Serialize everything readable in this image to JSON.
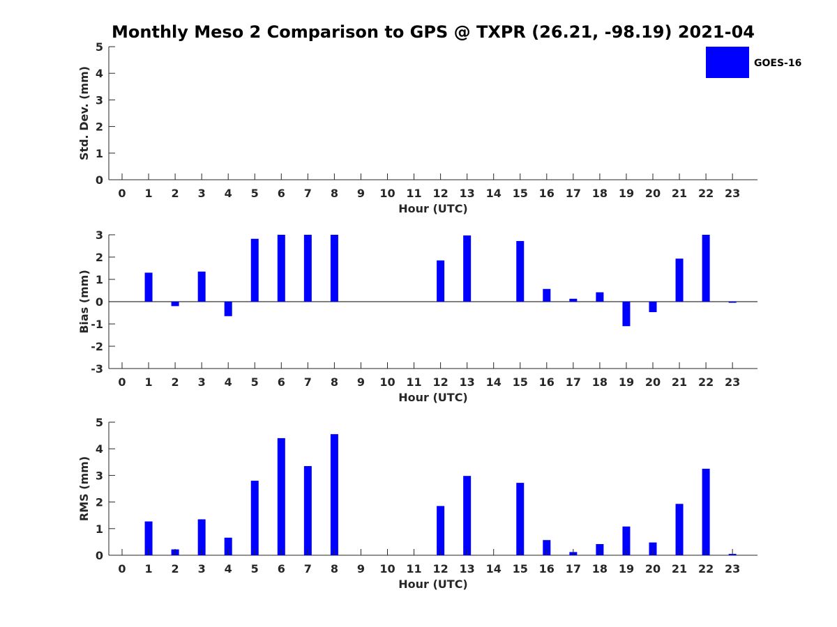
{
  "chart_data": {
    "title": "Monthly Meso 2 Comparison to GPS @ TXPR (26.21, -98.19) 2021-04",
    "legend": {
      "label": "GOES-16",
      "color": "#0000ff",
      "placement": "top-right"
    },
    "bar_color": "#0000ff",
    "subplots": [
      {
        "type": "bar",
        "name": "std-dev",
        "ylabel": "Std. Dev. (mm)",
        "xlabel": "Hour (UTC)",
        "ylim": [
          0,
          5
        ],
        "yticks": [
          "0",
          "1",
          "2",
          "3",
          "4",
          "5"
        ],
        "categories": [
          "0",
          "1",
          "2",
          "3",
          "4",
          "5",
          "6",
          "7",
          "8",
          "9",
          "10",
          "11",
          "12",
          "13",
          "14",
          "15",
          "16",
          "17",
          "18",
          "19",
          "20",
          "21",
          "22",
          "23"
        ],
        "values": [
          0,
          0,
          0,
          0,
          0,
          0,
          0,
          0,
          0,
          0,
          0,
          0,
          0,
          0,
          0,
          0,
          0,
          0,
          0,
          0,
          0,
          0,
          0,
          0
        ],
        "zero_line": false
      },
      {
        "type": "bar",
        "name": "bias",
        "ylabel": "Bias (mm)",
        "xlabel": "Hour (UTC)",
        "ylim": [
          -3,
          3
        ],
        "yticks": [
          "-3",
          "-2",
          "-1",
          "0",
          "1",
          "2",
          "3"
        ],
        "categories": [
          "0",
          "1",
          "2",
          "3",
          "4",
          "5",
          "6",
          "7",
          "8",
          "9",
          "10",
          "11",
          "12",
          "13",
          "14",
          "15",
          "16",
          "17",
          "18",
          "19",
          "20",
          "21",
          "22",
          "23"
        ],
        "values": [
          0,
          1.3,
          -0.2,
          1.35,
          -0.65,
          2.82,
          3.0,
          3.0,
          3.0,
          0,
          0,
          0,
          1.85,
          2.97,
          0,
          2.72,
          0.57,
          0.13,
          0.42,
          -1.1,
          -0.47,
          1.93,
          3.0,
          -0.05
        ],
        "zero_line": true
      },
      {
        "type": "bar",
        "name": "rms",
        "ylabel": "RMS (mm)",
        "xlabel": "Hour (UTC)",
        "ylim": [
          0,
          5
        ],
        "yticks": [
          "0",
          "1",
          "2",
          "3",
          "4",
          "5"
        ],
        "categories": [
          "0",
          "1",
          "2",
          "3",
          "4",
          "5",
          "6",
          "7",
          "8",
          "9",
          "10",
          "11",
          "12",
          "13",
          "14",
          "15",
          "16",
          "17",
          "18",
          "19",
          "20",
          "21",
          "22",
          "23"
        ],
        "values": [
          0,
          1.27,
          0.22,
          1.35,
          0.66,
          2.8,
          4.4,
          3.35,
          4.55,
          0,
          0,
          0,
          1.85,
          2.98,
          0,
          2.72,
          0.57,
          0.12,
          0.42,
          1.08,
          0.48,
          1.93,
          3.25,
          0.05
        ],
        "zero_line": false
      }
    ]
  }
}
